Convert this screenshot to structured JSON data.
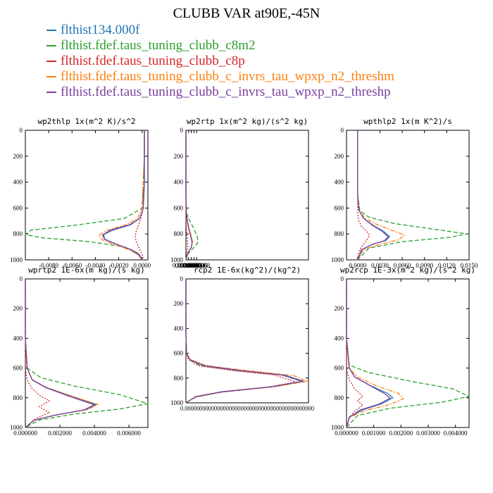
{
  "figure": {
    "title": "CLUBB VAR at90E,-45N",
    "legend": [
      {
        "label": "flthist134.000f",
        "color": "#1f77b4"
      },
      {
        "label": "flthist.fdef.taus_tuning_clubb_c8m2",
        "color": "#2ca02c"
      },
      {
        "label": "flthist.fdef.taus_tuning_clubb_c8p",
        "color": "#d62728"
      },
      {
        "label": "flthist.fdef.taus_tuning_clubb_c_invrs_tau_wpxp_n2_threshm",
        "color": "#ff7f0e"
      },
      {
        "label": "flthist.fdef.taus_tuning_clubb_c_invrs_tau_wpxp_n2_threshp",
        "color": "#7b3fa0"
      }
    ]
  },
  "chart_data": [
    {
      "type": "line",
      "title": "wp2thlp  1x(m^2 K)/s^2",
      "xlim": [
        -0.01,
        0.0005
      ],
      "ylim": [
        1000,
        0
      ],
      "xticks": [
        "-0.0080",
        "-0.0060",
        "-0.0040",
        "-0.0020",
        "0.0000"
      ],
      "xtick_values": [
        -0.008,
        -0.006,
        -0.004,
        -0.002,
        0.0
      ],
      "yticks": [
        "0",
        "200",
        "400",
        "600",
        "800",
        "1000"
      ],
      "series": [
        {
          "color": "#1f77b4",
          "x": [
            0.0002,
            0.0002,
            0.0002,
            0.0001,
            -0.0002,
            -0.001,
            -0.0025,
            -0.0033,
            -0.0032,
            -0.0022,
            -0.001,
            -0.0003,
            0.0
          ],
          "y": [
            0,
            200,
            400,
            600,
            680,
            730,
            770,
            805,
            840,
            880,
            920,
            960,
            1000
          ]
        },
        {
          "color": "#2ca02c",
          "x": [
            0.0002,
            0.0002,
            0.0001,
            0.0,
            -0.0015,
            -0.0055,
            -0.0095,
            -0.01,
            -0.0085,
            -0.0045,
            -0.0015,
            -0.0003,
            0.0
          ],
          "y": [
            0,
            200,
            400,
            600,
            680,
            730,
            770,
            805,
            830,
            860,
            900,
            950,
            1000
          ]
        },
        {
          "color": "#d62728",
          "x": [
            0.0002,
            0.0002,
            0.0001,
            0.0001,
            -0.0001,
            -0.0003,
            -0.0005,
            -0.0006,
            -0.0005,
            -0.0003,
            -0.0001,
            0.0001,
            0.0
          ],
          "y": [
            0,
            200,
            400,
            600,
            680,
            730,
            780,
            820,
            860,
            900,
            940,
            975,
            1000
          ]
        },
        {
          "color": "#ff7f0e",
          "x": [
            0.0002,
            0.0002,
            0.0001,
            0.0,
            -0.0004,
            -0.0014,
            -0.003,
            -0.0037,
            -0.0034,
            -0.0023,
            -0.001,
            -0.0003,
            0.0
          ],
          "y": [
            0,
            200,
            400,
            600,
            680,
            730,
            770,
            810,
            845,
            885,
            925,
            965,
            1000
          ]
        },
        {
          "color": "#7b3fa0",
          "x": [
            0.0002,
            0.0002,
            0.0002,
            0.0001,
            -0.0002,
            -0.0011,
            -0.0027,
            -0.0034,
            -0.0032,
            -0.0021,
            -0.0009,
            -0.0002,
            0.0
          ],
          "y": [
            0,
            200,
            400,
            600,
            680,
            730,
            770,
            808,
            842,
            882,
            922,
            962,
            1000
          ]
        }
      ]
    },
    {
      "type": "line",
      "title": "wp2rtp  1x(m^2 kg)/(s^2 kg)",
      "xlim": [
        0.0,
        9.2e-06
      ],
      "ylim": [
        1000,
        0
      ],
      "xticks": [
        "0.0000000",
        "0.0000002",
        "0.0000004",
        "0.0000006",
        "0.0000008"
      ],
      "xtick_values": [
        0.0,
        2e-07,
        4e-07,
        6e-07,
        8e-07
      ],
      "yticks": [
        "0",
        "200",
        "400",
        "600",
        "800",
        "1000"
      ],
      "series": [
        {
          "color": "#1f77b4",
          "x": [
            0.0,
            0.0,
            0.0,
            3e-08,
            1e-07,
            2.2e-07,
            3.8e-07,
            4.7e-07,
            4.2e-07,
            2.5e-07,
            1e-07,
            0.0
          ],
          "y": [
            0,
            300,
            500,
            640,
            700,
            760,
            820,
            865,
            900,
            930,
            960,
            1000
          ]
        },
        {
          "color": "#2ca02c",
          "x": [
            0.0,
            0.0,
            0.0,
            5e-08,
            2.5e-07,
            5.5e-07,
            8.2e-07,
            9.2e-07,
            7e-07,
            4e-07,
            1.5e-07,
            0.0
          ],
          "y": [
            0,
            300,
            500,
            640,
            690,
            750,
            810,
            860,
            895,
            925,
            955,
            1000
          ]
        },
        {
          "color": "#d62728",
          "x": [
            0.0,
            0.0,
            0.0,
            0.0,
            1e-08,
            4e-08,
            8e-08,
            1.2e-07,
            1.4e-07,
            1e-07,
            4e-08,
            0.0
          ],
          "y": [
            0,
            300,
            500,
            640,
            700,
            760,
            820,
            870,
            900,
            930,
            960,
            1000
          ]
        },
        {
          "color": "#ff7f0e",
          "x": [
            0.0,
            0.0,
            0.0,
            3e-08,
            1.2e-07,
            2.5e-07,
            4.2e-07,
            4.9e-07,
            4.3e-07,
            2.6e-07,
            1e-07,
            0.0
          ],
          "y": [
            0,
            300,
            500,
            640,
            700,
            760,
            820,
            860,
            897,
            928,
            958,
            1000
          ]
        },
        {
          "color": "#7b3fa0",
          "x": [
            0.0,
            0.0,
            0.0,
            3e-08,
            1e-07,
            2.1e-07,
            3.7e-07,
            4.6e-07,
            4.1e-07,
            2.4e-07,
            1e-07,
            0.0
          ],
          "y": [
            0,
            300,
            500,
            640,
            700,
            760,
            820,
            866,
            901,
            931,
            961,
            1000
          ]
        }
      ]
    },
    {
      "type": "line",
      "title": "wpthlp2  1x(m K^2)/s",
      "xlim": [
        -0.0015,
        0.015
      ],
      "ylim": [
        1000,
        0
      ],
      "xticks": [
        "0.0000",
        "0.0030",
        "0.0060",
        "0.0090",
        "0.0120",
        "0.0150"
      ],
      "xtick_values": [
        0.0,
        0.003,
        0.006,
        0.009,
        0.012,
        0.015
      ],
      "yticks": [
        "0",
        "200",
        "400",
        "600",
        "800",
        "1000"
      ],
      "series": [
        {
          "color": "#1f77b4",
          "x": [
            0.0,
            0.0,
            0.0,
            0.0002,
            0.0008,
            0.002,
            0.0035,
            0.0043,
            0.0038,
            0.002,
            0.0006,
            0.0
          ],
          "y": [
            0,
            300,
            500,
            620,
            680,
            730,
            780,
            820,
            850,
            880,
            920,
            1000
          ]
        },
        {
          "color": "#2ca02c",
          "x": [
            0.0,
            0.0,
            0.0,
            0.0003,
            0.0015,
            0.005,
            0.0105,
            0.0148,
            0.0125,
            0.006,
            0.0015,
            0.0
          ],
          "y": [
            0,
            300,
            500,
            620,
            670,
            720,
            765,
            800,
            825,
            860,
            910,
            1000
          ]
        },
        {
          "color": "#d62728",
          "x": [
            0.0,
            0.0,
            0.0,
            0.0,
            0.0001,
            0.0005,
            0.0012,
            0.0016,
            0.0012,
            0.0005,
            0.0001,
            0.0
          ],
          "y": [
            0,
            300,
            500,
            620,
            690,
            740,
            780,
            810,
            850,
            900,
            950,
            1000
          ]
        },
        {
          "color": "#ff7f0e",
          "x": [
            0.0,
            0.0,
            0.0,
            0.0002,
            0.001,
            0.0027,
            0.0048,
            0.0063,
            0.0055,
            0.003,
            0.0008,
            0.0
          ],
          "y": [
            0,
            300,
            500,
            620,
            680,
            730,
            775,
            810,
            845,
            880,
            920,
            1000
          ]
        },
        {
          "color": "#7b3fa0",
          "x": [
            0.0,
            0.0,
            0.0,
            0.0002,
            0.0008,
            0.0019,
            0.0033,
            0.0041,
            0.0036,
            0.0019,
            0.0005,
            0.0
          ],
          "y": [
            0,
            300,
            500,
            620,
            680,
            730,
            780,
            822,
            852,
            882,
            922,
            1000
          ]
        }
      ]
    },
    {
      "type": "line",
      "title": "wprtp2  1E-6x(m kg)/(s kg)",
      "xlim": [
        0.0,
        0.0071
      ],
      "ylim": [
        1000,
        0
      ],
      "xticks": [
        "0.000000",
        "0.002000",
        "0.004000",
        "0.006000"
      ],
      "xtick_values": [
        0.0,
        0.002,
        0.004,
        0.006
      ],
      "yticks": [
        "0",
        "200",
        "400",
        "600",
        "800",
        "1000"
      ],
      "series": [
        {
          "color": "#1f77b4",
          "x": [
            0.0,
            0.0,
            0.0001,
            0.0004,
            0.0012,
            0.0027,
            0.0041,
            0.0035,
            0.0018,
            0.0005,
            0.0
          ],
          "y": [
            0,
            400,
            600,
            680,
            730,
            790,
            845,
            880,
            915,
            950,
            1000
          ]
        },
        {
          "color": "#2ca02c",
          "x": [
            0.0,
            0.0,
            0.0001,
            0.0009,
            0.0028,
            0.0055,
            0.0071,
            0.0055,
            0.0028,
            0.0008,
            0.0
          ],
          "y": [
            0,
            400,
            600,
            665,
            720,
            780,
            840,
            875,
            910,
            950,
            1000
          ]
        },
        {
          "color": "#d62728",
          "x": [
            0.0,
            0.0,
            0.0,
            0.0001,
            0.0004,
            0.0009,
            0.0014,
            0.0008,
            0.0014,
            0.0006,
            0.0
          ],
          "y": [
            0,
            400,
            600,
            680,
            740,
            790,
            820,
            860,
            900,
            940,
            1000
          ]
        },
        {
          "color": "#ff7f0e",
          "x": [
            0.0,
            0.0,
            0.0001,
            0.0004,
            0.0012,
            0.0027,
            0.0042,
            0.0036,
            0.0018,
            0.0005,
            0.0
          ],
          "y": [
            0,
            400,
            600,
            680,
            730,
            790,
            845,
            880,
            915,
            950,
            1000
          ]
        },
        {
          "color": "#7b3fa0",
          "x": [
            0.0,
            0.0,
            0.0001,
            0.0004,
            0.0012,
            0.0026,
            0.004,
            0.0034,
            0.0017,
            0.0005,
            0.0
          ],
          "y": [
            0,
            400,
            600,
            680,
            732,
            792,
            847,
            882,
            917,
            952,
            1000
          ]
        }
      ]
    },
    {
      "type": "line",
      "title": "rcp2  1E-6x(kg^2)/(kg^2)",
      "xlim": [
        0.0,
        1.0
      ],
      "ylim": [
        1000,
        0
      ],
      "xticks_text": "0.00000000000000000000000000000000000000000000",
      "yticks": [
        "0",
        "200",
        "400",
        "600",
        "800",
        "1000"
      ],
      "series": [
        {
          "color": "#1f77b4",
          "x": [
            0.0,
            0.0,
            0.005,
            0.03,
            0.15,
            0.45,
            0.8,
            0.96,
            0.7,
            0.3,
            0.08,
            0.0
          ],
          "y": [
            0,
            450,
            600,
            650,
            700,
            740,
            775,
            825,
            870,
            910,
            950,
            1000
          ]
        },
        {
          "color": "#2ca02c",
          "x": [
            0.0,
            0.0,
            0.005,
            0.025,
            0.12,
            0.42,
            0.78,
            0.95,
            0.7,
            0.3,
            0.08,
            0.0
          ],
          "y": [
            0,
            450,
            600,
            650,
            700,
            740,
            775,
            828,
            872,
            912,
            952,
            1000
          ]
        },
        {
          "color": "#d62728",
          "x": [
            0.0,
            0.0,
            0.005,
            0.02,
            0.1,
            0.38,
            0.72,
            0.9,
            0.66,
            0.28,
            0.07,
            0.0
          ],
          "y": [
            0,
            450,
            600,
            650,
            700,
            740,
            775,
            832,
            875,
            915,
            955,
            1000
          ]
        },
        {
          "color": "#ff7f0e",
          "x": [
            0.0,
            0.0,
            0.006,
            0.035,
            0.17,
            0.5,
            0.88,
            0.99,
            0.74,
            0.32,
            0.08,
            0.0
          ],
          "y": [
            0,
            450,
            600,
            650,
            700,
            740,
            780,
            825,
            868,
            908,
            948,
            1000
          ]
        },
        {
          "color": "#7b3fa0",
          "x": [
            0.0,
            0.0,
            0.005,
            0.03,
            0.14,
            0.44,
            0.79,
            0.95,
            0.69,
            0.29,
            0.08,
            0.0
          ],
          "y": [
            0,
            450,
            600,
            650,
            700,
            740,
            776,
            826,
            871,
            911,
            951,
            1000
          ]
        }
      ]
    },
    {
      "type": "line",
      "title": "wp2rcp  1E-3x(m^2 kg)/(s^2 kg)",
      "xlim": [
        0.0,
        0.0045
      ],
      "ylim": [
        1000,
        0
      ],
      "xticks": [
        "0.000000",
        "0.001000",
        "0.002000",
        "0.003000",
        "0.004000"
      ],
      "xtick_values": [
        0.0,
        0.001,
        0.002,
        0.003,
        0.004
      ],
      "yticks": [
        "0",
        "200",
        "400",
        "600",
        "800",
        "1000"
      ],
      "series": [
        {
          "color": "#1f77b4",
          "x": [
            0.0,
            0.0,
            0.0001,
            0.0003,
            0.0009,
            0.0015,
            0.0017,
            0.0013,
            0.0006,
            0.0001,
            0.0
          ],
          "y": [
            0,
            400,
            600,
            660,
            720,
            770,
            800,
            840,
            880,
            930,
            1000
          ]
        },
        {
          "color": "#2ca02c",
          "x": [
            0.0,
            0.0,
            0.0001,
            0.0008,
            0.0024,
            0.0039,
            0.0045,
            0.0035,
            0.0016,
            0.0004,
            0.0
          ],
          "y": [
            0,
            400,
            580,
            630,
            690,
            740,
            790,
            830,
            870,
            920,
            1000
          ]
        },
        {
          "color": "#d62728",
          "x": [
            0.0,
            0.0,
            0.0,
            0.0001,
            0.0003,
            0.0006,
            0.0004,
            0.0006,
            0.0003,
            0.0001,
            0.0
          ],
          "y": [
            0,
            400,
            600,
            680,
            740,
            790,
            820,
            850,
            890,
            935,
            1000
          ]
        },
        {
          "color": "#ff7f0e",
          "x": [
            0.0,
            0.0,
            0.0001,
            0.0004,
            0.0011,
            0.0019,
            0.0021,
            0.0016,
            0.0007,
            0.0001,
            0.0
          ],
          "y": [
            0,
            400,
            600,
            660,
            720,
            770,
            805,
            845,
            885,
            932,
            1000
          ]
        },
        {
          "color": "#7b3fa0",
          "x": [
            0.0,
            0.0,
            0.0001,
            0.0003,
            0.0009,
            0.0014,
            0.0016,
            0.0012,
            0.0005,
            0.0001,
            0.0
          ],
          "y": [
            0,
            400,
            600,
            660,
            722,
            772,
            802,
            842,
            882,
            932,
            1000
          ]
        }
      ]
    }
  ]
}
